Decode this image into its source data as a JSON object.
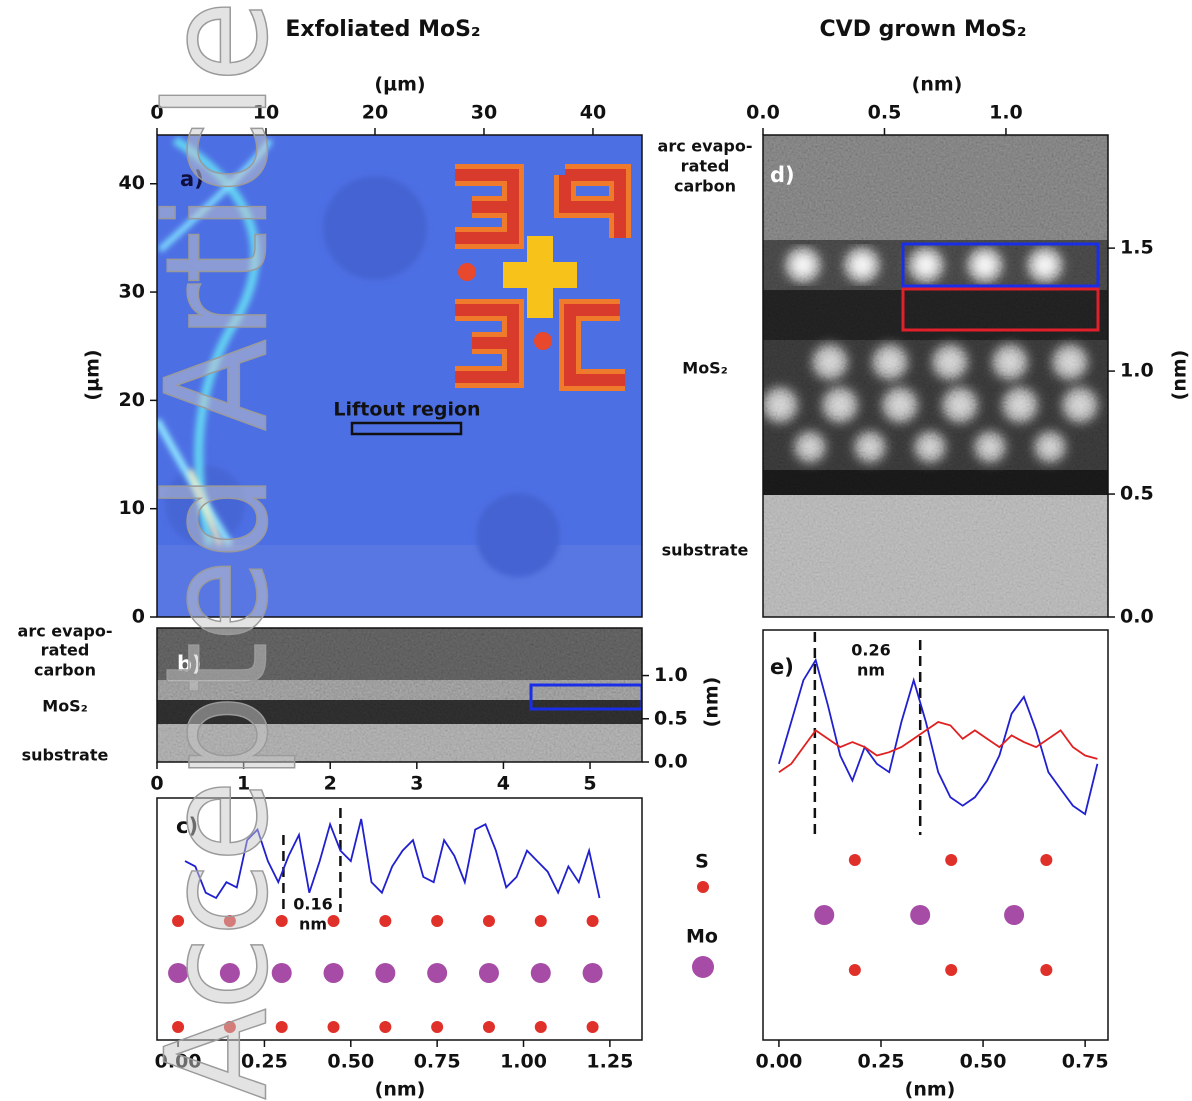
{
  "watermark": "Accepted Article",
  "legend": [
    {
      "name": "S",
      "color": "#e0302a"
    },
    {
      "name": "Mo",
      "color": "#a64ca6"
    }
  ],
  "panels": [
    {
      "type": "image",
      "title": "Exfoliated MoS₂",
      "label": "a)",
      "xlabel": "(µm)",
      "ylabel": "(µm)",
      "xlim": [
        0,
        44.5
      ],
      "ylim": [
        0,
        44.5
      ],
      "xticks": [
        0,
        10,
        20,
        30,
        40
      ],
      "yticks": [
        0,
        10,
        20,
        30,
        40
      ],
      "annotation": "Liftout region"
    },
    {
      "type": "image",
      "label": "b)",
      "ylabel": "(nm)",
      "xlim": [
        0,
        5.6
      ],
      "ylim": [
        0,
        1.55
      ],
      "xticks": [
        0,
        1,
        2,
        3,
        4,
        5
      ],
      "yticks": [
        {
          "value": 0,
          "label": "0.0"
        },
        0.5,
        {
          "value": 1,
          "label": "1.0"
        }
      ],
      "layers": [
        [
          "arc evapo-",
          "rated",
          "carbon"
        ],
        [
          "MoS₂"
        ],
        [
          "substrate"
        ]
      ]
    },
    {
      "type": "profile",
      "label": "c)",
      "xlabel": "(nm)",
      "xlim": [
        -0.061,
        1.343
      ],
      "ylim": [
        -1.2,
        1.1
      ],
      "xticks": [
        {
          "value": 0,
          "label": "0.00"
        },
        0.25,
        {
          "value": 0.5,
          "label": "0.50"
        },
        0.75,
        {
          "value": 1,
          "label": "1.00"
        },
        1.25
      ],
      "series": [
        {
          "color": "#2020d0",
          "x": [
            0.02,
            0.05,
            0.08,
            0.11,
            0.14,
            0.17,
            0.2,
            0.23,
            0.26,
            0.29,
            0.32,
            0.35,
            0.38,
            0.41,
            0.44,
            0.47,
            0.5,
            0.53,
            0.56,
            0.59,
            0.62,
            0.65,
            0.68,
            0.71,
            0.74,
            0.77,
            0.8,
            0.83,
            0.86,
            0.89,
            0.92,
            0.95,
            0.98,
            1.01,
            1.04,
            1.07,
            1.1,
            1.13,
            1.16,
            1.19,
            1.22
          ],
          "values": [
            0.5,
            0.45,
            0.2,
            0.15,
            0.3,
            0.25,
            0.7,
            0.8,
            0.5,
            0.3,
            0.55,
            0.75,
            0.2,
            0.5,
            0.85,
            0.6,
            0.5,
            0.9,
            0.3,
            0.2,
            0.45,
            0.6,
            0.7,
            0.35,
            0.3,
            0.7,
            0.55,
            0.3,
            0.8,
            0.85,
            0.6,
            0.25,
            0.35,
            0.6,
            0.5,
            0.4,
            0.2,
            0.45,
            0.3,
            0.6,
            0.15
          ]
        }
      ],
      "spacing": {
        "label": [
          "0.16",
          "nm"
        ],
        "x": [
          0.305,
          0.47
        ]
      },
      "atoms": {
        "S": [
          0,
          0.15,
          0.3,
          0.45,
          0.6,
          0.75,
          0.9,
          1.05,
          1.2
        ],
        "Mo": [
          0,
          0.15,
          0.3,
          0.45,
          0.6,
          0.75,
          0.9,
          1.05,
          1.2
        ]
      }
    },
    {
      "type": "image",
      "title": "CVD grown MoS₂",
      "label": "d)",
      "xlabel": "(nm)",
      "ylabel": "(nm)",
      "xlim": [
        0,
        1.42
      ],
      "ylim": [
        0,
        1.96
      ],
      "xticks": [
        {
          "value": 0,
          "label": "0.0"
        },
        0.5,
        {
          "value": 1,
          "label": "1.0"
        }
      ],
      "yticks": [
        {
          "value": 0,
          "label": "0.0"
        },
        0.5,
        {
          "value": 1,
          "label": "1.0"
        },
        1.5
      ],
      "layers": [
        [
          "arc evapo-",
          "rated",
          "carbon"
        ],
        [
          "MoS₂"
        ],
        [
          "substrate"
        ]
      ]
    },
    {
      "type": "profile",
      "label": "e)",
      "xlabel": "(nm)",
      "xlim": [
        -0.039,
        0.806
      ],
      "ylim": [
        -1.3,
        1.15
      ],
      "xticks": [
        {
          "value": 0,
          "label": "0.00"
        },
        0.25,
        {
          "value": 0.5,
          "label": "0.50"
        },
        0.75
      ],
      "series": [
        {
          "color": "#2020d0",
          "x": [
            0,
            0.03,
            0.06,
            0.09,
            0.12,
            0.15,
            0.18,
            0.21,
            0.24,
            0.27,
            0.3,
            0.33,
            0.36,
            0.39,
            0.42,
            0.45,
            0.48,
            0.51,
            0.54,
            0.57,
            0.6,
            0.63,
            0.66,
            0.69,
            0.72,
            0.75,
            0.78
          ],
          "values": [
            0.35,
            0.6,
            0.85,
            0.97,
            0.7,
            0.4,
            0.25,
            0.45,
            0.35,
            0.3,
            0.6,
            0.85,
            0.6,
            0.3,
            0.15,
            0.1,
            0.15,
            0.25,
            0.4,
            0.65,
            0.75,
            0.55,
            0.3,
            0.2,
            0.1,
            0.05,
            0.35
          ]
        },
        {
          "color": "#e02020",
          "x": [
            0,
            0.03,
            0.06,
            0.09,
            0.12,
            0.15,
            0.18,
            0.21,
            0.24,
            0.27,
            0.3,
            0.33,
            0.36,
            0.39,
            0.42,
            0.45,
            0.48,
            0.51,
            0.54,
            0.57,
            0.6,
            0.63,
            0.66,
            0.69,
            0.72,
            0.75,
            0.78
          ],
          "values": [
            0.3,
            0.35,
            0.45,
            0.55,
            0.5,
            0.45,
            0.48,
            0.45,
            0.4,
            0.42,
            0.45,
            0.5,
            0.55,
            0.6,
            0.58,
            0.5,
            0.55,
            0.5,
            0.45,
            0.52,
            0.48,
            0.45,
            0.5,
            0.55,
            0.45,
            0.4,
            0.38
          ]
        }
      ],
      "spacing": {
        "label": [
          "0.26",
          "nm"
        ],
        "x": [
          0.088,
          0.346
        ]
      },
      "atoms": {
        "S": [
          0.186,
          0.422,
          0.655
        ],
        "Mo": [
          0.111,
          0.346,
          0.576
        ]
      }
    }
  ]
}
